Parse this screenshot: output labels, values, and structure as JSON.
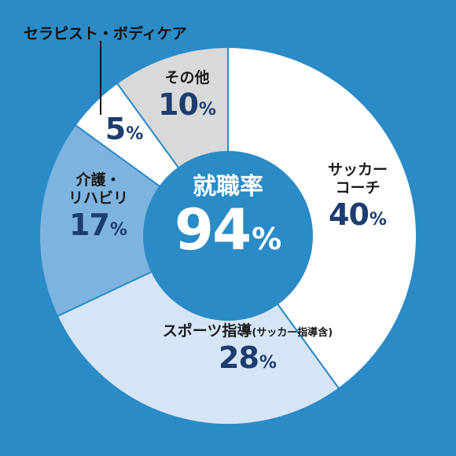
{
  "chart_data": {
    "type": "pie",
    "center": {
      "title": "就職率",
      "value": "94",
      "unit": "%"
    },
    "slices": [
      {
        "name_lines": [
          "サッカー",
          "コーチ"
        ],
        "value": 40,
        "color": "#ffffff",
        "label_color": "#1a1a1a"
      },
      {
        "name_lines": [
          "スポーツ指導",
          "(サッカー指導含)"
        ],
        "value": 28,
        "color": "#d6e5f5",
        "label_color": "#1a1a1a"
      },
      {
        "name_lines": [
          "介護・",
          "リハビリ"
        ],
        "value": 17,
        "color": "#7eb3df",
        "label_color": "#1a1a1a"
      },
      {
        "name_lines": [
          "セラピスト・ボディケア"
        ],
        "value": 5,
        "color": "#ffffff",
        "label_color": "#1a1a1a"
      },
      {
        "name_lines": [
          "その他"
        ],
        "value": 10,
        "color": "#d9d9d9",
        "label_color": "#1a1a1a"
      }
    ],
    "percent_unit": "%"
  },
  "colors": {
    "background": "#2a8bc6",
    "center_circle": "#2a8bc6",
    "value_text": "#1c3d6e"
  }
}
